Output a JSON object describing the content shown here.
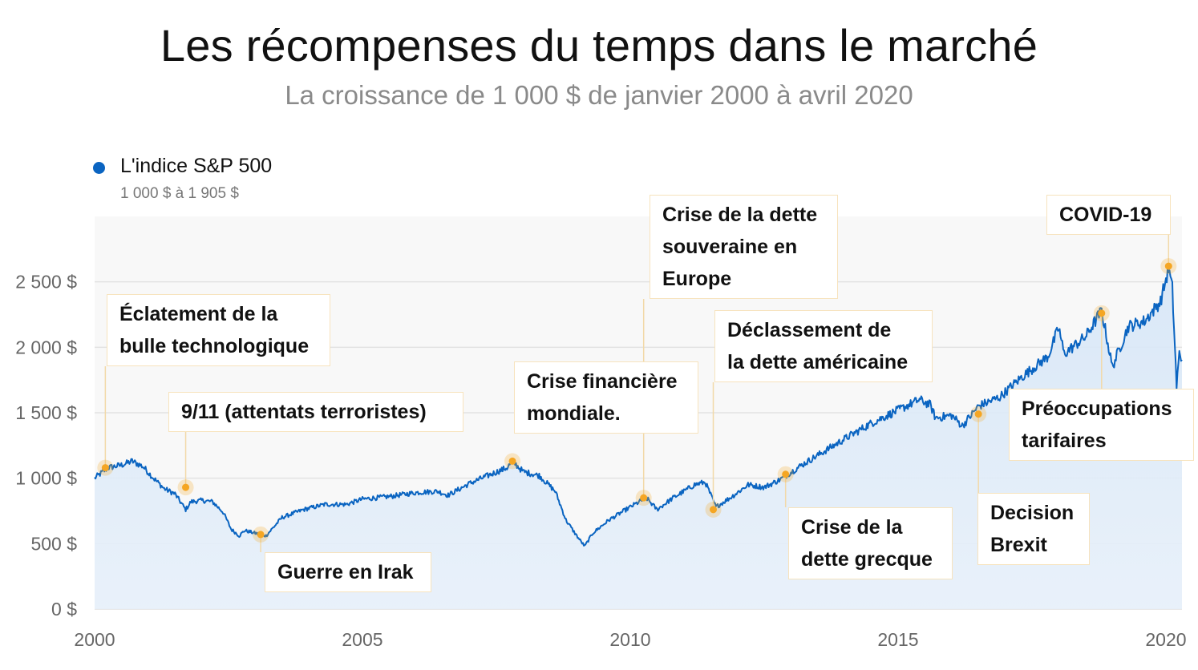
{
  "chart_data": {
    "type": "area",
    "title": "Les récompenses du temps dans le marché",
    "subtitle": "La croissance de 1 000 $ de janvier 2000 à avril 2020",
    "xlabel": "",
    "ylabel": "",
    "xlim": [
      2000.0,
      2020.3
    ],
    "ylim": [
      0,
      3000
    ],
    "x_ticks": [
      "2000",
      "2005",
      "2010",
      "2015",
      "2020"
    ],
    "y_ticks": [
      "0 $",
      "500 $",
      "1 000 $",
      "1 500 $",
      "2 000 $",
      "2 500 $"
    ],
    "grid": true,
    "legend": {
      "position": "top-left",
      "name": "L'indice S&P 500",
      "range": "1 000 $ à 1 905 $",
      "color": "#0a64c1"
    },
    "series": [
      {
        "name": "L'indice S&P 500",
        "color": "#0a64c1",
        "points": [
          [
            2000.0,
            1000
          ],
          [
            2000.25,
            1080
          ],
          [
            2000.5,
            1100
          ],
          [
            2000.7,
            1130
          ],
          [
            2000.9,
            1090
          ],
          [
            2001.1,
            1000
          ],
          [
            2001.3,
            920
          ],
          [
            2001.5,
            880
          ],
          [
            2001.7,
            760
          ],
          [
            2001.8,
            820
          ],
          [
            2002.0,
            830
          ],
          [
            2002.2,
            820
          ],
          [
            2002.4,
            740
          ],
          [
            2002.55,
            610
          ],
          [
            2002.7,
            560
          ],
          [
            2002.8,
            600
          ],
          [
            2003.0,
            580
          ],
          [
            2003.2,
            560
          ],
          [
            2003.5,
            700
          ],
          [
            2003.9,
            760
          ],
          [
            2004.3,
            800
          ],
          [
            2004.7,
            800
          ],
          [
            2005.0,
            840
          ],
          [
            2005.5,
            860
          ],
          [
            2006.0,
            890
          ],
          [
            2006.4,
            900
          ],
          [
            2006.6,
            870
          ],
          [
            2007.0,
            960
          ],
          [
            2007.4,
            1030
          ],
          [
            2007.7,
            1080
          ],
          [
            2007.8,
            1130
          ],
          [
            2008.0,
            1050
          ],
          [
            2008.3,
            1020
          ],
          [
            2008.6,
            900
          ],
          [
            2008.8,
            680
          ],
          [
            2009.0,
            560
          ],
          [
            2009.15,
            480
          ],
          [
            2009.3,
            580
          ],
          [
            2009.6,
            680
          ],
          [
            2010.0,
            780
          ],
          [
            2010.3,
            850
          ],
          [
            2010.5,
            760
          ],
          [
            2010.8,
            850
          ],
          [
            2011.2,
            950
          ],
          [
            2011.4,
            970
          ],
          [
            2011.6,
            780
          ],
          [
            2011.9,
            860
          ],
          [
            2012.2,
            950
          ],
          [
            2012.5,
            930
          ],
          [
            2012.8,
            990
          ],
          [
            2013.2,
            1100
          ],
          [
            2013.6,
            1200
          ],
          [
            2014.0,
            1300
          ],
          [
            2014.5,
            1420
          ],
          [
            2015.0,
            1520
          ],
          [
            2015.4,
            1600
          ],
          [
            2015.6,
            1560
          ],
          [
            2015.7,
            1460
          ],
          [
            2016.0,
            1480
          ],
          [
            2016.2,
            1400
          ],
          [
            2016.5,
            1550
          ],
          [
            2016.9,
            1620
          ],
          [
            2017.3,
            1770
          ],
          [
            2017.8,
            1930
          ],
          [
            2018.0,
            2150
          ],
          [
            2018.1,
            1950
          ],
          [
            2018.5,
            2080
          ],
          [
            2018.8,
            2280
          ],
          [
            2019.0,
            1850
          ],
          [
            2019.3,
            2160
          ],
          [
            2019.6,
            2200
          ],
          [
            2019.9,
            2350
          ],
          [
            2020.05,
            2600
          ],
          [
            2020.12,
            2450
          ],
          [
            2020.2,
            1700
          ],
          [
            2020.25,
            1950
          ],
          [
            2020.3,
            1905
          ]
        ]
      }
    ],
    "annotations": [
      {
        "label": "Éclatement de la\nbulle technologique",
        "x": 2000.2,
        "y": 1080
      },
      {
        "label": "9/11 (attentats terroristes)",
        "x": 2001.7,
        "y": 930
      },
      {
        "label": "Guerre en Irak",
        "x": 2003.1,
        "y": 570
      },
      {
        "label": "Crise financière\nmondiale.",
        "x": 2007.8,
        "y": 1130
      },
      {
        "label": "Crise de la dette\nsouveraine en\nEurope",
        "x": 2010.25,
        "y": 850
      },
      {
        "label": "Déclassement de\nla dette américaine",
        "x": 2011.55,
        "y": 760
      },
      {
        "label": "Crise de la\ndette grecque",
        "x": 2012.9,
        "y": 1030
      },
      {
        "label": "Decision\nBrexit",
        "x": 2016.5,
        "y": 1490
      },
      {
        "label": "Préoccupations\ntarifaires",
        "x": 2018.8,
        "y": 2260
      },
      {
        "label": "COVID-19",
        "x": 2020.05,
        "y": 2620
      }
    ]
  }
}
